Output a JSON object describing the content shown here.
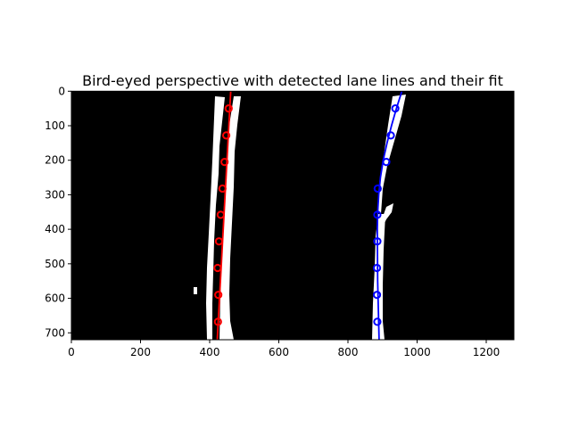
{
  "chart_data": {
    "type": "scatter",
    "title": "Bird-eyed perspective with detected lane lines and their fit",
    "xlabel": "",
    "ylabel": "",
    "xlim": [
      0,
      1280
    ],
    "ylim": [
      720,
      0
    ],
    "y_inverted": true,
    "grid": false,
    "legend": "none",
    "x_ticks": [
      0,
      200,
      400,
      600,
      800,
      1000,
      1200
    ],
    "y_ticks": [
      0,
      100,
      200,
      300,
      400,
      500,
      600,
      700
    ],
    "background": {
      "type": "binary-mask",
      "colors": {
        "background": "#000000",
        "foreground": "#ffffff"
      }
    },
    "series": [
      {
        "color": "#ff0000",
        "marker": "ring",
        "points": [
          [
            455,
            50
          ],
          [
            448,
            128
          ],
          [
            443,
            205
          ],
          [
            437,
            282
          ],
          [
            432,
            358
          ],
          [
            427,
            435
          ],
          [
            423,
            512
          ],
          [
            425,
            590
          ],
          [
            424,
            668
          ]
        ],
        "fit": {
          "type": "line",
          "x": [
            461,
            422
          ],
          "y": [
            0,
            720
          ]
        }
      },
      {
        "color": "#0000ff",
        "marker": "ring",
        "points": [
          [
            937,
            50
          ],
          [
            924,
            128
          ],
          [
            911,
            205
          ],
          [
            886,
            282
          ],
          [
            885,
            358
          ],
          [
            885,
            435
          ],
          [
            884,
            512
          ],
          [
            884,
            590
          ],
          [
            885,
            668
          ]
        ],
        "fit": {
          "type": "curve",
          "x": [
            956,
            940,
            926,
            913,
            902,
            894,
            889,
            886,
            885,
            886,
            890
          ],
          "y": [
            0,
            50,
            100,
            150,
            200,
            250,
            300,
            350,
            400,
            550,
            720
          ]
        }
      }
    ]
  }
}
